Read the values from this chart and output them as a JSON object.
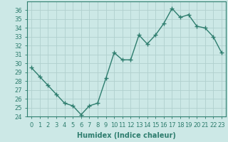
{
  "x": [
    0,
    1,
    2,
    3,
    4,
    5,
    6,
    7,
    8,
    9,
    10,
    11,
    12,
    13,
    14,
    15,
    16,
    17,
    18,
    19,
    20,
    21,
    22,
    23
  ],
  "y": [
    29.5,
    28.5,
    27.5,
    26.5,
    25.5,
    25.2,
    24.2,
    25.2,
    25.5,
    28.3,
    31.2,
    30.4,
    30.4,
    33.2,
    32.2,
    33.2,
    34.5,
    36.2,
    35.2,
    35.5,
    34.2,
    34.0,
    33.0,
    31.2
  ],
  "line_color": "#2e7d6e",
  "marker": "+",
  "marker_size": 4,
  "bg_color": "#cce8e6",
  "grid_color": "#b0d0ce",
  "xlabel": "Humidex (Indice chaleur)",
  "ylim": [
    24,
    37
  ],
  "xlim": [
    -0.5,
    23.5
  ],
  "yticks": [
    24,
    25,
    26,
    27,
    28,
    29,
    30,
    31,
    32,
    33,
    34,
    35,
    36
  ],
  "xticks": [
    0,
    1,
    2,
    3,
    4,
    5,
    6,
    7,
    8,
    9,
    10,
    11,
    12,
    13,
    14,
    15,
    16,
    17,
    18,
    19,
    20,
    21,
    22,
    23
  ],
  "label_fontsize": 7,
  "tick_fontsize": 6
}
